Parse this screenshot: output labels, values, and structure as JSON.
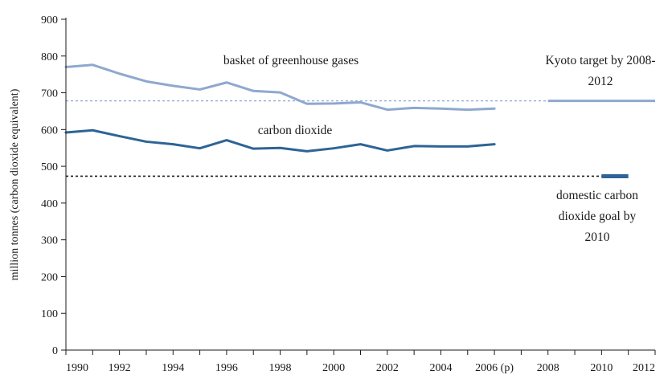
{
  "chart_data": {
    "type": "line",
    "ylabel": "million tonnes (carbon dioxide equivalent)",
    "xlabel": "",
    "ylim": [
      0,
      900
    ],
    "xlim": [
      1990,
      2012
    ],
    "y_ticks": [
      0,
      100,
      200,
      300,
      400,
      500,
      600,
      700,
      800,
      900
    ],
    "x_tick_positions": [
      1990,
      1992,
      1994,
      1996,
      1998,
      2000,
      2002,
      2004,
      2006,
      2008,
      2010,
      2012
    ],
    "x_tick_labels": [
      "1990",
      "1992",
      "1994",
      "1996",
      "1998",
      "2000",
      "2002",
      "2004",
      "2006 (p)",
      "2008",
      "2010",
      "2012"
    ],
    "grid": false,
    "legend": "none",
    "series": [
      {
        "name": "basket of greenhouse gases",
        "color": "#8fa8cf",
        "x": [
          1990,
          1991,
          1992,
          1993,
          1994,
          1995,
          1996,
          1997,
          1998,
          1999,
          2000,
          2001,
          2002,
          2003,
          2004,
          2005,
          2006
        ],
        "y": [
          770,
          776,
          752,
          731,
          719,
          709,
          728,
          705,
          701,
          670,
          671,
          674,
          654,
          659,
          657,
          654,
          657
        ]
      },
      {
        "name": "carbon dioxide",
        "color": "#2e6496",
        "x": [
          1990,
          1991,
          1992,
          1993,
          1994,
          1995,
          1996,
          1997,
          1998,
          1999,
          2000,
          2001,
          2002,
          2003,
          2004,
          2005,
          2006
        ],
        "y": [
          592,
          598,
          582,
          567,
          560,
          549,
          571,
          548,
          550,
          541,
          549,
          560,
          543,
          555,
          554,
          554,
          560
        ]
      }
    ],
    "targets": [
      {
        "name": "Kyoto target by 2008-2012",
        "color": "#8fa8cf",
        "value": 678,
        "x": [
          2008,
          2012
        ],
        "reference_line_to": 2008
      },
      {
        "name": "domestic carbon dioxide goal by 2010",
        "color": "#2e6496",
        "value": 473,
        "x": [
          2010,
          2011
        ],
        "reference_line_to": 2010
      }
    ],
    "annotations": {
      "basket_label": "basket of greenhouse gases",
      "co2_label": "carbon dioxide",
      "kyoto_line1": "Kyoto target by 2008-",
      "kyoto_line2": "2012",
      "domestic_line1": "domestic carbon",
      "domestic_line2": "dioxide goal by",
      "domestic_line3": "2010"
    }
  }
}
